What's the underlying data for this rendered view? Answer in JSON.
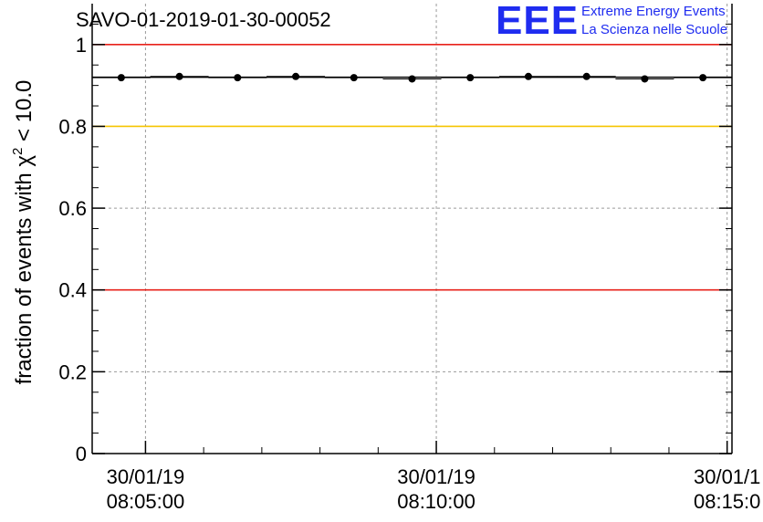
{
  "header": {
    "title": "SAVO-01-2019-01-30-00052",
    "logo_text": "EEE",
    "logo_line1": "Extreme Energy Events",
    "logo_line2": "La Scienza nelle Scuole",
    "logo_color": "#1f2cf0"
  },
  "chart_data": {
    "type": "scatter",
    "title": "SAVO-01-2019-01-30-00052",
    "ylabel": "fraction of events with χ² < 10.0",
    "ylabel_parts": {
      "pre": "fraction of events with χ",
      "sup": "2",
      "post": " < 10.0"
    },
    "xlabel": "",
    "ylim": [
      0,
      1.1
    ],
    "xlim": [
      "2019-01-30 08:04:05",
      "2019-01-30 08:15:05"
    ],
    "x_is_time": true,
    "yticks": [
      0,
      0.2,
      0.4,
      0.6,
      0.8,
      1
    ],
    "ytick_labels": [
      "0",
      "0.2",
      "0.4",
      "0.6",
      "0.8",
      "1"
    ],
    "xticks": [
      {
        "t": "2019-01-30 08:05:00",
        "date": "30/01/19",
        "time": "08:05:00"
      },
      {
        "t": "2019-01-30 08:10:00",
        "date": "30/01/19",
        "time": "08:10:00"
      },
      {
        "t": "2019-01-30 08:15:00",
        "date": "30/01/1",
        "time": "08:15:0"
      }
    ],
    "grid": true,
    "reference_lines": [
      {
        "y": 1.0,
        "color": "#e8221b"
      },
      {
        "y": 0.8,
        "color": "#f5c400"
      },
      {
        "y": 0.4,
        "color": "#e8221b"
      },
      {
        "y": 0.92,
        "color": "#000000"
      }
    ],
    "series": [
      {
        "x": [
          "2019-01-30 08:04:35",
          "2019-01-30 08:05:35",
          "2019-01-30 08:06:35",
          "2019-01-30 08:07:35",
          "2019-01-30 08:08:35",
          "2019-01-30 08:09:35",
          "2019-01-30 08:10:35",
          "2019-01-30 08:11:35",
          "2019-01-30 08:12:35",
          "2019-01-30 08:13:35",
          "2019-01-30 08:14:35"
        ],
        "values": [
          0.919,
          0.922,
          0.919,
          0.922,
          0.919,
          0.916,
          0.919,
          0.922,
          0.922,
          0.916,
          0.919
        ],
        "color": "#000000"
      }
    ]
  }
}
